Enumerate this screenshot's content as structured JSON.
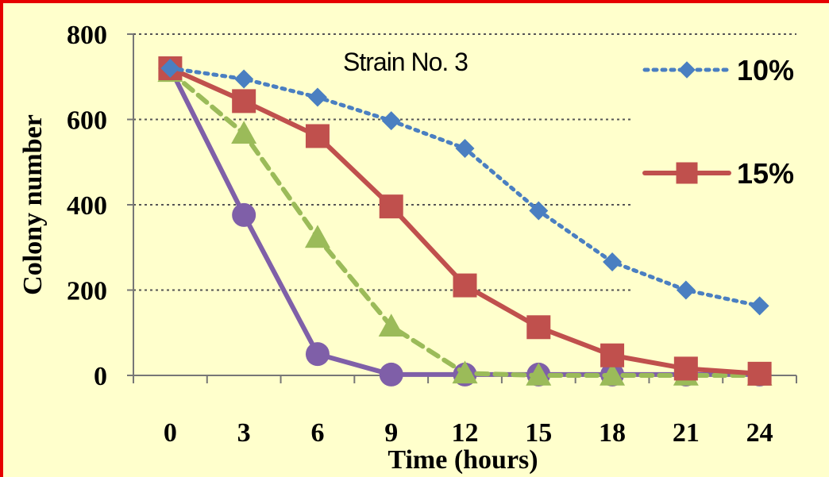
{
  "chart_data": {
    "type": "line",
    "annotation": "Strain No. 3",
    "xlabel": "Time (hours)",
    "ylabel": "Colony number",
    "categories": [
      0,
      3,
      6,
      9,
      12,
      15,
      18,
      21,
      24
    ],
    "ylim": [
      0,
      800
    ],
    "yticks": [
      0,
      200,
      400,
      600,
      800
    ],
    "grid": "horizontal dotted",
    "legend_position": "right, inside plot",
    "series": [
      {
        "name": "10%",
        "values": [
          720,
          695,
          652,
          597,
          532,
          386,
          266,
          200,
          163
        ],
        "color": "#4a7fc1",
        "marker": "diamond",
        "line": "dotted"
      },
      {
        "name": "15%",
        "values": [
          720,
          643,
          561,
          396,
          211,
          113,
          47,
          16,
          4
        ],
        "color": "#c0504d",
        "marker": "square",
        "line": "solid"
      },
      {
        "values": [
          712,
          567,
          323,
          115,
          5,
          0,
          0,
          0,
          0
        ],
        "color": "#9bbb59",
        "marker": "triangle",
        "line": "dashed"
      },
      {
        "values": [
          720,
          376,
          50,
          2,
          2,
          2,
          2,
          2,
          2
        ],
        "color": "#7f5fa8",
        "marker": "circle",
        "line": "solid"
      }
    ]
  }
}
